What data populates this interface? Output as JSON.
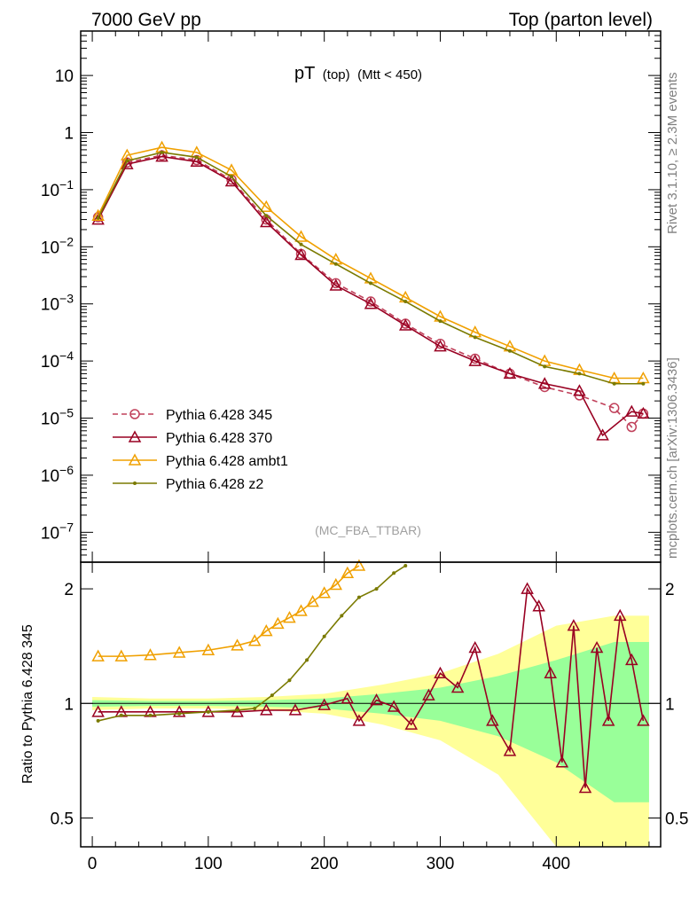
{
  "header": {
    "left": "7000 GeV pp",
    "right": "Top (parton level)"
  },
  "side_labels": {
    "rivet": "Rivet 3.1.10, ≥ 2.3M events",
    "mcplots": "mcplots.cern.ch [arXiv:1306.3436]"
  },
  "chart_data": [
    {
      "type": "line",
      "panel": "main",
      "title_main": "pT",
      "title_sub1": "(top)",
      "title_sub2": "(Mtt < 450)",
      "watermark": "(MC_FBA_TTBAR)",
      "yscale": "log",
      "ylim": [
        3e-08,
        60
      ],
      "xlim": [
        -10,
        490
      ],
      "yticks": [
        {
          "value": 10,
          "base": "10",
          "exp": ""
        },
        {
          "value": 1,
          "base": "1",
          "exp": ""
        },
        {
          "value": 0.1,
          "base": "10",
          "exp": "−1"
        },
        {
          "value": 0.01,
          "base": "10",
          "exp": "−2"
        },
        {
          "value": 0.001,
          "base": "10",
          "exp": "−3"
        },
        {
          "value": 0.0001,
          "base": "10",
          "exp": "−4"
        },
        {
          "value": 1e-05,
          "base": "10",
          "exp": "−5"
        },
        {
          "value": 1e-06,
          "base": "10",
          "exp": "−6"
        },
        {
          "value": 1e-07,
          "base": "10",
          "exp": "−7"
        }
      ],
      "legend_position": "bottom-left",
      "series": [
        {
          "name": "Pythia 6.428 345",
          "color": "#c0405a",
          "marker": "circle",
          "dashed": true,
          "x": [
            5,
            30,
            60,
            90,
            120,
            150,
            180,
            210,
            240,
            270,
            300,
            330,
            360,
            390,
            420,
            450,
            465,
            475
          ],
          "y": [
            0.033,
            0.3,
            0.4,
            0.33,
            0.15,
            0.03,
            0.0075,
            0.0023,
            0.0011,
            0.00045,
            0.0002,
            0.00011,
            6e-05,
            3.5e-05,
            2.5e-05,
            1.5e-05,
            7e-06,
            1.2e-05
          ]
        },
        {
          "name": "Pythia 6.428 370",
          "color": "#990022",
          "marker": "triangle",
          "dashed": false,
          "x": [
            5,
            30,
            60,
            90,
            120,
            150,
            180,
            210,
            240,
            270,
            300,
            330,
            360,
            390,
            420,
            440,
            465,
            475
          ],
          "y": [
            0.03,
            0.28,
            0.38,
            0.31,
            0.14,
            0.027,
            0.0072,
            0.0021,
            0.001,
            0.00042,
            0.00018,
            0.0001,
            6e-05,
            4e-05,
            3e-05,
            5e-06,
            1.3e-05,
            1.2e-05
          ]
        },
        {
          "name": "Pythia 6.428 ambt1",
          "color": "#f0a000",
          "marker": "triangle",
          "dashed": false,
          "x": [
            5,
            30,
            60,
            90,
            120,
            150,
            180,
            210,
            240,
            270,
            300,
            330,
            360,
            390,
            420,
            450,
            475
          ],
          "y": [
            0.035,
            0.4,
            0.55,
            0.45,
            0.22,
            0.05,
            0.015,
            0.006,
            0.0028,
            0.0013,
            0.0006,
            0.00032,
            0.00018,
            0.0001,
            7e-05,
            5e-05,
            5e-05
          ]
        },
        {
          "name": "Pythia 6.428 z2",
          "color": "#7a7a00",
          "marker": "dot",
          "dashed": false,
          "x": [
            5,
            30,
            60,
            90,
            120,
            150,
            180,
            210,
            240,
            270,
            300,
            330,
            360,
            390,
            420,
            450,
            475
          ],
          "y": [
            0.032,
            0.32,
            0.45,
            0.37,
            0.17,
            0.035,
            0.011,
            0.005,
            0.0023,
            0.0011,
            0.0005,
            0.00026,
            0.00015,
            8e-05,
            6e-05,
            4e-05,
            4e-05
          ]
        }
      ]
    },
    {
      "type": "line",
      "panel": "ratio",
      "ylabel": "Ratio to Pythia 6.428 345",
      "yscale": "log",
      "ylim": [
        0.42,
        2.35
      ],
      "xlim": [
        -10,
        490
      ],
      "xticks": [
        0,
        100,
        200,
        300,
        400
      ],
      "yticks": [
        0.5,
        1,
        2
      ],
      "bands": [
        {
          "name": "uncertainty-outer",
          "color": "#ffff99",
          "x": [
            0,
            50,
            100,
            150,
            200,
            250,
            300,
            350,
            400,
            450,
            480
          ],
          "half_width": [
            0.04,
            0.03,
            0.03,
            0.04,
            0.06,
            0.12,
            0.2,
            0.35,
            0.6,
            0.7,
            0.7
          ]
        },
        {
          "name": "uncertainty-inner",
          "color": "#99ff99",
          "x": [
            0,
            50,
            100,
            150,
            200,
            250,
            300,
            350,
            400,
            450,
            480
          ],
          "half_width": [
            0.02,
            0.015,
            0.015,
            0.02,
            0.03,
            0.06,
            0.1,
            0.18,
            0.3,
            0.45,
            0.45
          ]
        }
      ],
      "series": [
        {
          "name": "Pythia 6.428 370",
          "color": "#990022",
          "marker": "triangle",
          "x": [
            5,
            25,
            50,
            75,
            100,
            125,
            150,
            175,
            200,
            220,
            230,
            245,
            260,
            275,
            290,
            300,
            315,
            330,
            345,
            360,
            375,
            385,
            395,
            405,
            415,
            425,
            435,
            445,
            455,
            465,
            475
          ],
          "y": [
            0.95,
            0.95,
            0.95,
            0.95,
            0.95,
            0.95,
            0.96,
            0.96,
            0.99,
            1.03,
            0.9,
            1.02,
            0.98,
            0.88,
            1.05,
            1.2,
            1.1,
            1.4,
            0.9,
            0.75,
            2.0,
            1.8,
            1.2,
            0.7,
            1.6,
            0.6,
            1.4,
            0.9,
            1.7,
            1.3,
            0.9
          ]
        },
        {
          "name": "Pythia 6.428 ambt1",
          "color": "#f0a000",
          "marker": "triangle",
          "x": [
            5,
            25,
            50,
            75,
            100,
            125,
            140,
            150,
            160,
            170,
            180,
            190,
            200,
            210,
            220,
            230
          ],
          "y": [
            1.33,
            1.33,
            1.34,
            1.36,
            1.38,
            1.42,
            1.46,
            1.55,
            1.62,
            1.68,
            1.75,
            1.85,
            1.95,
            2.05,
            2.2,
            2.3
          ]
        },
        {
          "name": "Pythia 6.428 z2",
          "color": "#7a7a00",
          "marker": "dot",
          "x": [
            5,
            25,
            50,
            75,
            100,
            125,
            140,
            155,
            170,
            185,
            200,
            215,
            230,
            245,
            260,
            270
          ],
          "y": [
            0.9,
            0.93,
            0.93,
            0.94,
            0.95,
            0.96,
            0.97,
            1.05,
            1.15,
            1.3,
            1.5,
            1.7,
            1.9,
            2.0,
            2.2,
            2.3
          ]
        }
      ]
    }
  ]
}
